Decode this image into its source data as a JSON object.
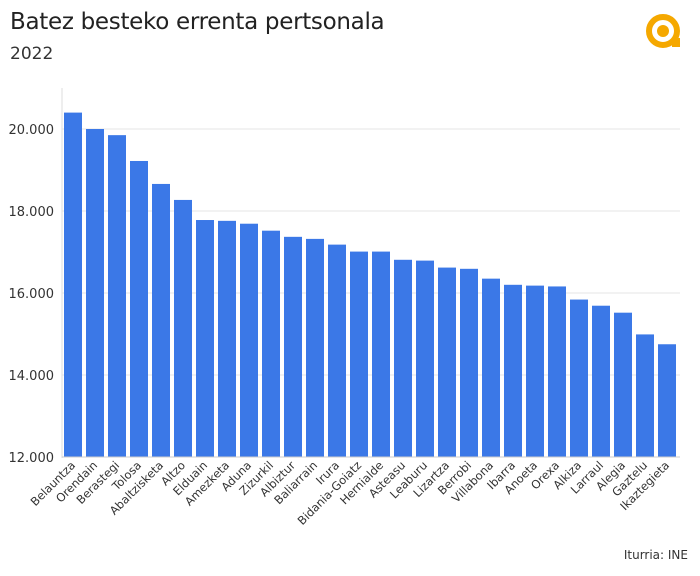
{
  "title": "Batez besteko errenta pertsonala",
  "subtitle": "2022",
  "source": "Iturria: INE",
  "logo_icon": "orange-circle-logo",
  "colors": {
    "bar": "#3b78e7",
    "logo": "#f5a800"
  },
  "chart_data": {
    "type": "bar",
    "categories": [
      "Belauntza",
      "Orendain",
      "Berastegi",
      "Tolosa",
      "Abaltzisketa",
      "Altzo",
      "Elduain",
      "Amezketa",
      "Aduna",
      "Zizurkil",
      "Albiztur",
      "Baliarrain",
      "Irura",
      "Bidania-Goiatz",
      "Hernialde",
      "Asteasu",
      "Leaburu",
      "Lizartza",
      "Berrobi",
      "Villabona",
      "Ibarra",
      "Anoeta",
      "Orexa",
      "Alkiza",
      "Larraul",
      "Alegia",
      "Gaztelu",
      "Ikaztegieta"
    ],
    "values": [
      20400,
      20000,
      19850,
      19220,
      18660,
      18270,
      17780,
      17760,
      17690,
      17520,
      17370,
      17320,
      17180,
      17010,
      17010,
      16810,
      16790,
      16620,
      16590,
      16350,
      16200,
      16180,
      16160,
      15840,
      15690,
      15520,
      14990,
      14750
    ],
    "yticks": [
      "12.000",
      "14.000",
      "16.000",
      "18.000",
      "20.000"
    ],
    "ylim": [
      12000,
      21000
    ],
    "grid": true
  }
}
